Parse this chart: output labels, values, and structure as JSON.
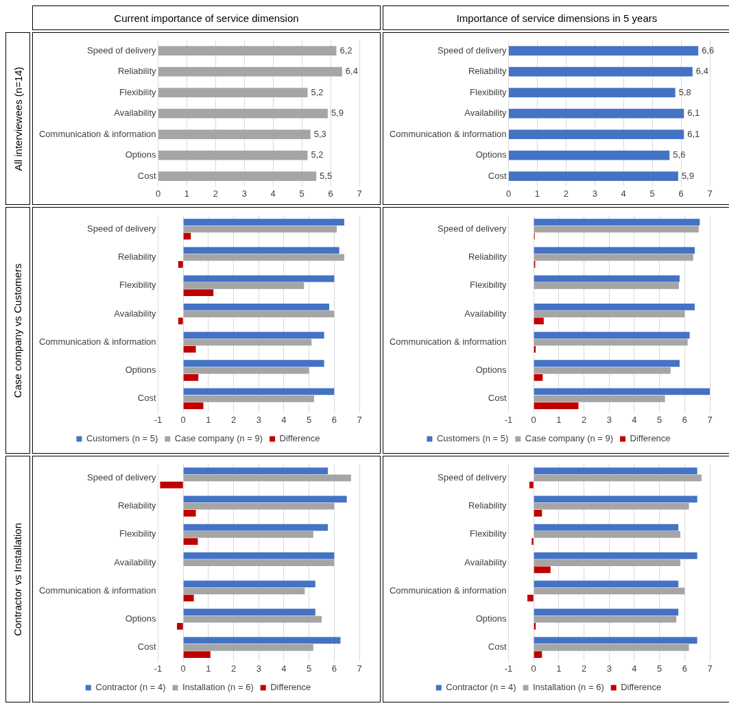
{
  "chart_data": [
    {
      "type": "bar",
      "orientation": "horizontal",
      "title": "Current importance of service dimension",
      "ylabel": "All interviewees (n=14)",
      "categories": [
        "Speed of delivery",
        "Reliability",
        "Flexibility",
        "Availability",
        "Communication & information",
        "Options",
        "Cost"
      ],
      "values": [
        6.2,
        6.4,
        5.2,
        5.9,
        5.3,
        5.2,
        5.5
      ],
      "value_labels": [
        "6,2",
        "6,4",
        "5,2",
        "5,9",
        "5,3",
        "5,2",
        "5,5"
      ],
      "color": "#a5a5a5",
      "xlim": [
        0,
        7
      ],
      "xticks": [
        0,
        1,
        2,
        3,
        4,
        5,
        6,
        7
      ],
      "grid": "x",
      "legend": false
    },
    {
      "type": "bar",
      "orientation": "horizontal",
      "title": "Importance of service dimensions in 5 years",
      "categories": [
        "Speed of delivery",
        "Reliability",
        "Flexibility",
        "Availability",
        "Communication & information",
        "Options",
        "Cost"
      ],
      "values": [
        6.6,
        6.4,
        5.8,
        6.1,
        6.1,
        5.6,
        5.9
      ],
      "value_labels": [
        "6,6",
        "6,4",
        "5,8",
        "6,1",
        "6,1",
        "5,6",
        "5,9"
      ],
      "color": "#4472c4",
      "xlim": [
        0,
        7
      ],
      "xticks": [
        0,
        1,
        2,
        3,
        4,
        5,
        6,
        7
      ],
      "grid": "x",
      "legend": false
    },
    {
      "type": "bar",
      "orientation": "horizontal",
      "ylabel": "Case company vs Customers",
      "categories": [
        "Speed of delivery",
        "Reliability",
        "Flexibility",
        "Availability",
        "Communication & information",
        "Options",
        "Cost"
      ],
      "series": [
        {
          "name": "Customers (n = 5)",
          "color": "#4472c4",
          "values": [
            6.4,
            6.2,
            6.0,
            5.8,
            5.6,
            5.6,
            6.0
          ]
        },
        {
          "name": "Case company (n = 9)",
          "color": "#a5a5a5",
          "values": [
            6.1,
            6.4,
            4.8,
            6.0,
            5.1,
            5.0,
            5.2
          ]
        },
        {
          "name": "Difference",
          "color": "#c00000",
          "values": [
            0.3,
            -0.2,
            1.2,
            -0.2,
            0.5,
            0.6,
            0.8
          ]
        }
      ],
      "xlim": [
        -1,
        7
      ],
      "xticks": [
        -1,
        0,
        1,
        2,
        3,
        4,
        5,
        6,
        7
      ],
      "grid": "x",
      "legend": "bottom"
    },
    {
      "type": "bar",
      "orientation": "horizontal",
      "categories": [
        "Speed of delivery",
        "Reliability",
        "Flexibility",
        "Availability",
        "Communication & information",
        "Options",
        "Cost"
      ],
      "series": [
        {
          "name": "Customers (n = 5)",
          "color": "#4472c4",
          "values": [
            6.6,
            6.4,
            5.8,
            6.4,
            6.2,
            5.8,
            7.0
          ]
        },
        {
          "name": "Case company (n = 9)",
          "color": "#a5a5a5",
          "values": [
            6.56,
            6.34,
            5.77,
            6.0,
            6.12,
            5.44,
            5.22
          ]
        },
        {
          "name": "Difference",
          "color": "#c00000",
          "values": [
            0.04,
            0.06,
            0.0,
            0.4,
            0.08,
            0.36,
            1.78
          ]
        }
      ],
      "xlim": [
        -1,
        7
      ],
      "xticks": [
        -1,
        0,
        1,
        2,
        3,
        4,
        5,
        6,
        7
      ],
      "grid": "x",
      "legend": "bottom"
    },
    {
      "type": "bar",
      "orientation": "horizontal",
      "ylabel": "Contractor vs Installation",
      "categories": [
        "Speed of delivery",
        "Reliability",
        "Flexibility",
        "Availability",
        "Communication & information",
        "Options",
        "Cost"
      ],
      "series": [
        {
          "name": "Contractor (n = 4)",
          "color": "#4472c4",
          "values": [
            5.75,
            6.5,
            5.75,
            6.0,
            5.25,
            5.25,
            6.25
          ]
        },
        {
          "name": "Installation (n = 6)",
          "color": "#a5a5a5",
          "values": [
            6.67,
            6.0,
            5.17,
            6.0,
            4.83,
            5.5,
            5.17
          ]
        },
        {
          "name": "Difference",
          "color": "#c00000",
          "values": [
            -0.92,
            0.5,
            0.58,
            0.0,
            0.42,
            -0.25,
            1.08
          ]
        }
      ],
      "xlim": [
        -1,
        7
      ],
      "xticks": [
        -1,
        0,
        1,
        2,
        3,
        4,
        5,
        6,
        7
      ],
      "grid": "x",
      "legend": "bottom"
    },
    {
      "type": "bar",
      "orientation": "horizontal",
      "categories": [
        "Speed of delivery",
        "Reliability",
        "Flexibility",
        "Availability",
        "Communication & information",
        "Options",
        "Cost"
      ],
      "series": [
        {
          "name": "Contractor (n = 4)",
          "color": "#4472c4",
          "values": [
            6.5,
            6.5,
            5.75,
            6.5,
            5.75,
            5.75,
            6.5
          ]
        },
        {
          "name": "Installation (n = 6)",
          "color": "#a5a5a5",
          "values": [
            6.67,
            6.17,
            5.83,
            5.83,
            6.0,
            5.67,
            6.17
          ]
        },
        {
          "name": "Difference",
          "color": "#c00000",
          "values": [
            -0.17,
            0.33,
            -0.08,
            0.67,
            -0.25,
            0.08,
            0.33
          ]
        }
      ],
      "xlim": [
        -1,
        7
      ],
      "xticks": [
        -1,
        0,
        1,
        2,
        3,
        4,
        5,
        6,
        7
      ],
      "grid": "x",
      "legend": "bottom"
    }
  ]
}
